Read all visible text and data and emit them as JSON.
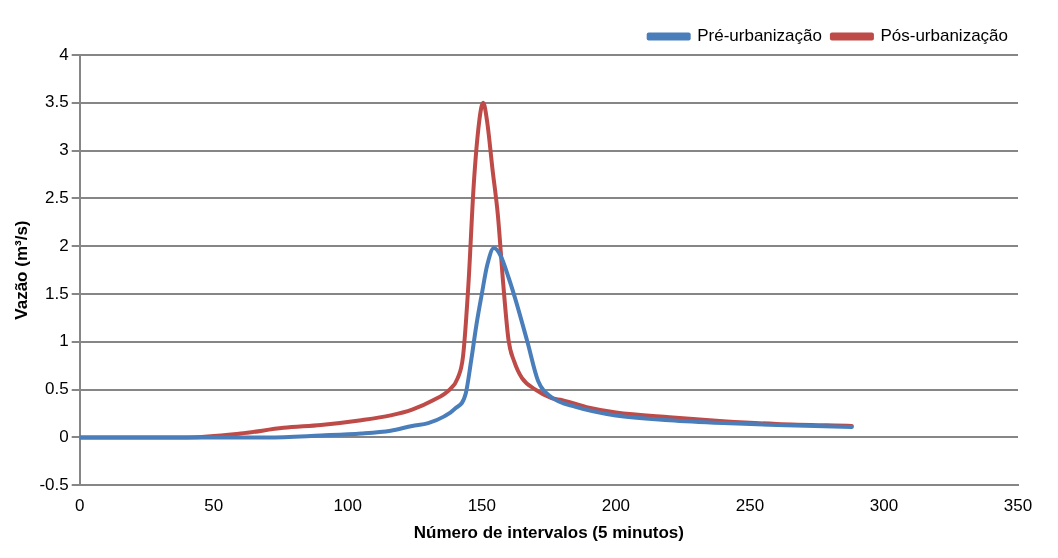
{
  "chart_data": {
    "type": "line",
    "xlabel": "Número de intervalos (5 minutos)",
    "ylabel": "Vazão (m³/s)",
    "xlim": [
      0,
      350
    ],
    "xticks": [
      0,
      50,
      100,
      150,
      200,
      250,
      300,
      350
    ],
    "ylim": [
      -0.5,
      4
    ],
    "yticks": [
      -0.5,
      0,
      0.5,
      1,
      1.5,
      2,
      2.5,
      3,
      3.5,
      4
    ],
    "grid": "y",
    "legend": "top right",
    "marker": "none",
    "line_style": "solid",
    "series": [
      {
        "name": "Pré-urbanização",
        "color": "#4a7ebb",
        "x": [
          0,
          43,
          70,
          90,
          105,
          116,
          124,
          130,
          136,
          140,
          144,
          146,
          148,
          150,
          152,
          154.5,
          157,
          160,
          163,
          167,
          171,
          176,
          185,
          200,
          220,
          240,
          260,
          288
        ],
        "values": [
          0,
          0,
          0,
          0.02,
          0.04,
          0.07,
          0.12,
          0.15,
          0.22,
          0.3,
          0.46,
          0.8,
          1.18,
          1.5,
          1.8,
          1.98,
          1.9,
          1.67,
          1.4,
          1.0,
          0.59,
          0.42,
          0.32,
          0.23,
          0.18,
          0.15,
          0.13,
          0.11
        ]
      },
      {
        "name": "Pós-urbanização",
        "color": "#be4b48",
        "x": [
          0,
          40,
          60,
          76,
          90,
          105,
          116,
          124,
          132,
          138,
          141,
          143,
          145,
          147,
          149,
          150.5,
          152,
          154,
          156,
          158,
          160,
          162,
          165,
          170,
          176,
          180,
          190,
          200,
          220,
          240,
          260,
          288
        ],
        "values": [
          0,
          0,
          0.04,
          0.1,
          0.13,
          0.18,
          0.23,
          0.29,
          0.39,
          0.5,
          0.62,
          0.85,
          1.6,
          2.65,
          3.3,
          3.5,
          3.3,
          2.8,
          2.32,
          1.6,
          1.01,
          0.8,
          0.62,
          0.5,
          0.41,
          0.39,
          0.31,
          0.26,
          0.21,
          0.17,
          0.14,
          0.12
        ]
      }
    ]
  }
}
